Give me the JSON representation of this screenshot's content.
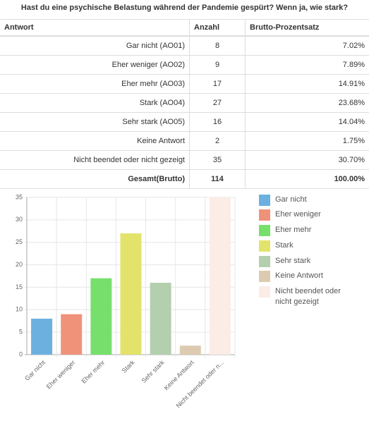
{
  "title": "Hast du eine psychische Belastung während der Pandemie gespürt? Wenn ja, wie stark?",
  "table": {
    "columns": [
      "Antwort",
      "Anzahl",
      "Brutto-Prozentsatz"
    ],
    "rows": [
      [
        "Gar nicht (AO01)",
        "8",
        "7.02%"
      ],
      [
        "Eher weniger (AO02)",
        "9",
        "7.89%"
      ],
      [
        "Eher mehr (AO03)",
        "17",
        "14.91%"
      ],
      [
        "Stark (AO04)",
        "27",
        "23.68%"
      ],
      [
        "Sehr stark (AO05)",
        "16",
        "14.04%"
      ],
      [
        "Keine Antwort",
        "2",
        "1.75%"
      ],
      [
        "Nicht beendet oder nicht gezeigt",
        "35",
        "30.70%"
      ]
    ],
    "total": [
      "Gesamt(Brutto)",
      "114",
      "100.00%"
    ]
  },
  "chart_data": {
    "type": "bar",
    "categories": [
      "Gar nicht",
      "Eher weniger",
      "Eher mehr",
      "Stark",
      "Sehr stark",
      "Keine Antwort",
      "Nicht beendet oder n..."
    ],
    "values": [
      8,
      9,
      17,
      27,
      16,
      2,
      35
    ],
    "colors": [
      "#6cb0e0",
      "#f0927a",
      "#77e06d",
      "#e3e36c",
      "#b3cfae",
      "#dccbb0",
      "#fbece6"
    ],
    "legend": [
      "Gar nicht",
      "Eher weniger",
      "Eher mehr",
      "Stark",
      "Sehr stark",
      "Keine Antwort",
      "Nicht beendet oder nicht gezeigt"
    ],
    "ylim": [
      0,
      35
    ],
    "yticks": [
      0,
      5,
      10,
      15,
      20,
      25,
      30,
      35
    ],
    "grid": true
  }
}
